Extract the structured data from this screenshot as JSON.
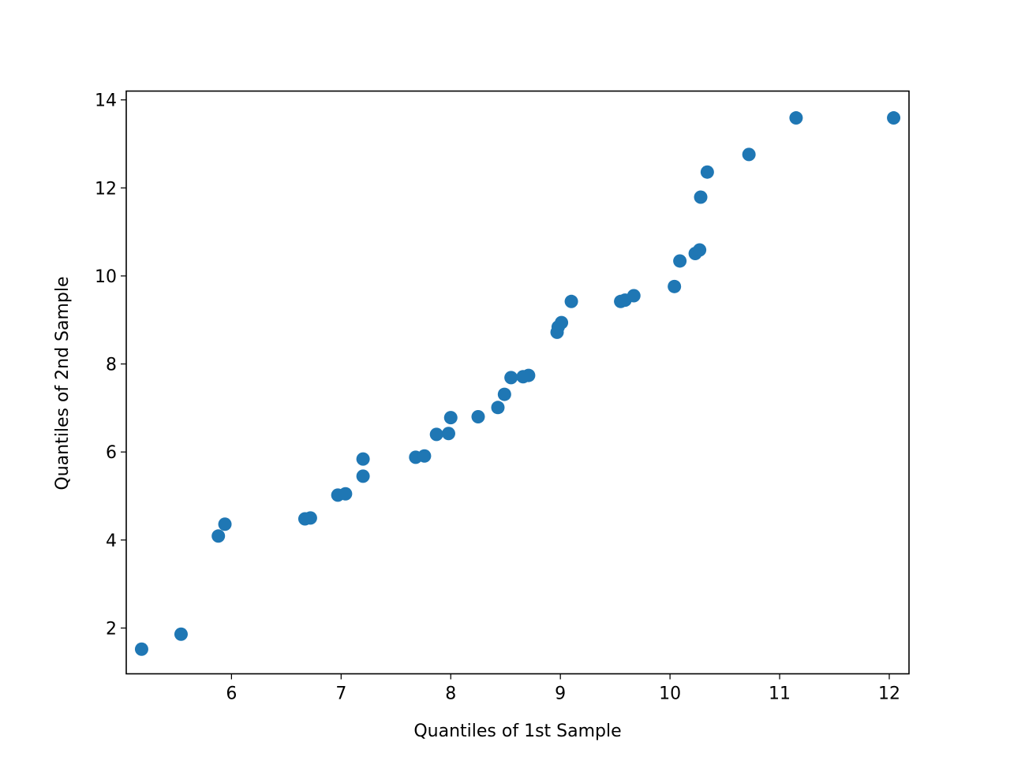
{
  "chart_data": {
    "type": "scatter",
    "title": "",
    "xlabel": "Quantiles of 1st Sample",
    "ylabel": "Quantiles of 2nd Sample",
    "xlim": [
      5.04,
      12.18
    ],
    "ylim": [
      0.96,
      14.2
    ],
    "xticks": [
      6,
      7,
      8,
      9,
      10,
      11,
      12
    ],
    "yticks": [
      2,
      4,
      6,
      8,
      10,
      12,
      14
    ],
    "grid": false,
    "legend": "none",
    "marker_color": "#1f77b4",
    "series": [
      {
        "points": [
          [
            5.18,
            1.52
          ],
          [
            5.54,
            1.86
          ],
          [
            5.88,
            4.09
          ],
          [
            5.94,
            4.36
          ],
          [
            6.67,
            4.48
          ],
          [
            6.72,
            4.5
          ],
          [
            6.97,
            5.02
          ],
          [
            7.04,
            5.05
          ],
          [
            7.2,
            5.45
          ],
          [
            7.2,
            5.84
          ],
          [
            7.68,
            5.88
          ],
          [
            7.76,
            5.91
          ],
          [
            7.87,
            6.4
          ],
          [
            7.98,
            6.42
          ],
          [
            8.0,
            6.78
          ],
          [
            8.25,
            6.8
          ],
          [
            8.43,
            7.01
          ],
          [
            8.49,
            7.31
          ],
          [
            8.55,
            7.69
          ],
          [
            8.66,
            7.71
          ],
          [
            8.71,
            7.74
          ],
          [
            8.97,
            8.72
          ],
          [
            8.98,
            8.84
          ],
          [
            9.01,
            8.94
          ],
          [
            9.1,
            9.42
          ],
          [
            9.55,
            9.42
          ],
          [
            9.59,
            9.45
          ],
          [
            9.67,
            9.55
          ],
          [
            10.04,
            9.76
          ],
          [
            10.09,
            10.34
          ],
          [
            10.23,
            10.51
          ],
          [
            10.27,
            10.59
          ],
          [
            10.28,
            11.79
          ],
          [
            10.34,
            12.36
          ],
          [
            10.72,
            12.76
          ],
          [
            11.15,
            13.59
          ],
          [
            12.04,
            13.59
          ]
        ]
      }
    ]
  }
}
